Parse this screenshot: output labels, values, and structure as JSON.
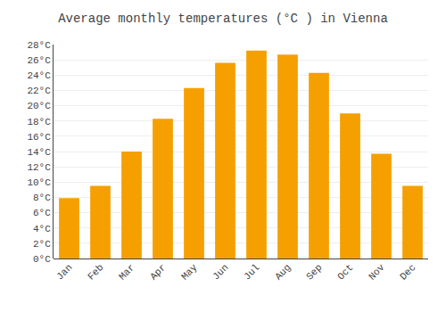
{
  "chart_data": {
    "type": "bar",
    "title": "Average monthly temperatures (°C ) in Vienna",
    "categories": [
      "Jan",
      "Feb",
      "Mar",
      "Apr",
      "May",
      "Jun",
      "Jul",
      "Aug",
      "Sep",
      "Oct",
      "Nov",
      "Dec"
    ],
    "values": [
      7.9,
      9.5,
      14.0,
      18.3,
      22.3,
      25.6,
      27.2,
      26.7,
      24.3,
      19.0,
      13.7,
      9.5
    ],
    "color": "#F5A000",
    "ylim": [
      0,
      28
    ],
    "yticks": [
      {
        "value": 0,
        "label": "0°C"
      },
      {
        "value": 2,
        "label": "2°C"
      },
      {
        "value": 4,
        "label": "4°C"
      },
      {
        "value": 6,
        "label": "6°C"
      },
      {
        "value": 8,
        "label": "8°C"
      },
      {
        "value": 10,
        "label": "10°C"
      },
      {
        "value": 12,
        "label": "12°C"
      },
      {
        "value": 14,
        "label": "14°C"
      },
      {
        "value": 16,
        "label": "16°C"
      },
      {
        "value": 18,
        "label": "18°C"
      },
      {
        "value": 20,
        "label": "20°C"
      },
      {
        "value": 22,
        "label": "22°C"
      },
      {
        "value": 24,
        "label": "24°C"
      },
      {
        "value": 26,
        "label": "26°C"
      },
      {
        "value": 28,
        "label": "28°C"
      }
    ],
    "grid": true
  }
}
